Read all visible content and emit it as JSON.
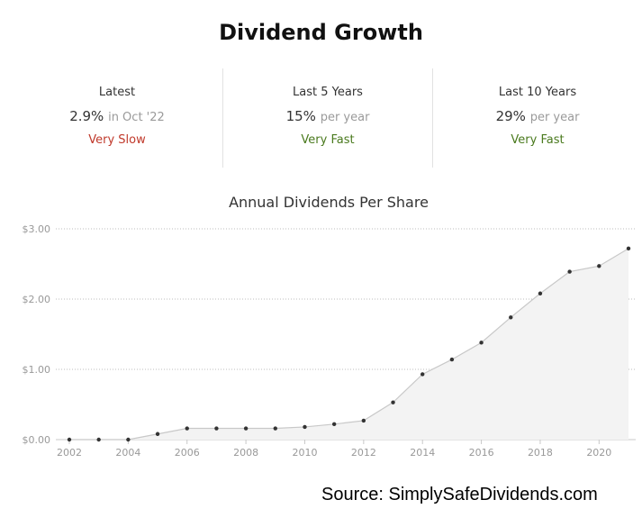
{
  "header": {
    "title": "Dividend Growth"
  },
  "stats": [
    {
      "label": "Latest",
      "value": "2.9%",
      "sub": "in Oct '22",
      "rating": "Very Slow",
      "rating_color": "#c0392b"
    },
    {
      "label": "Last 5 Years",
      "value": "15%",
      "sub": "per year",
      "rating": "Very Fast",
      "rating_color": "#4a7a1e"
    },
    {
      "label": "Last 10 Years",
      "value": "29%",
      "sub": "per year",
      "rating": "Very Fast",
      "rating_color": "#4a7a1e"
    }
  ],
  "chart_data": {
    "type": "area",
    "title": "Annual Dividends Per Share",
    "x": [
      2002,
      2003,
      2004,
      2005,
      2006,
      2007,
      2008,
      2009,
      2010,
      2011,
      2012,
      2013,
      2014,
      2015,
      2016,
      2017,
      2018,
      2019,
      2020,
      2021
    ],
    "values": [
      0.0,
      0.0,
      0.0,
      0.08,
      0.16,
      0.16,
      0.16,
      0.16,
      0.18,
      0.22,
      0.27,
      0.53,
      0.93,
      1.14,
      1.38,
      1.74,
      2.08,
      2.39,
      2.47,
      2.72
    ],
    "x_ticks": [
      "2002",
      "2004",
      "2006",
      "2008",
      "2010",
      "2012",
      "2014",
      "2016",
      "2018",
      "2020"
    ],
    "y_ticks": [
      "$0.00",
      "$1.00",
      "$2.00",
      "$3.00"
    ],
    "ylim": [
      0,
      3
    ],
    "grid": true,
    "line_color": "#c8c8c8",
    "fill_color": "#f3f3f3",
    "marker_color": "#333333"
  },
  "footer": {
    "source": "Source: SimplySafeDividends.com"
  }
}
